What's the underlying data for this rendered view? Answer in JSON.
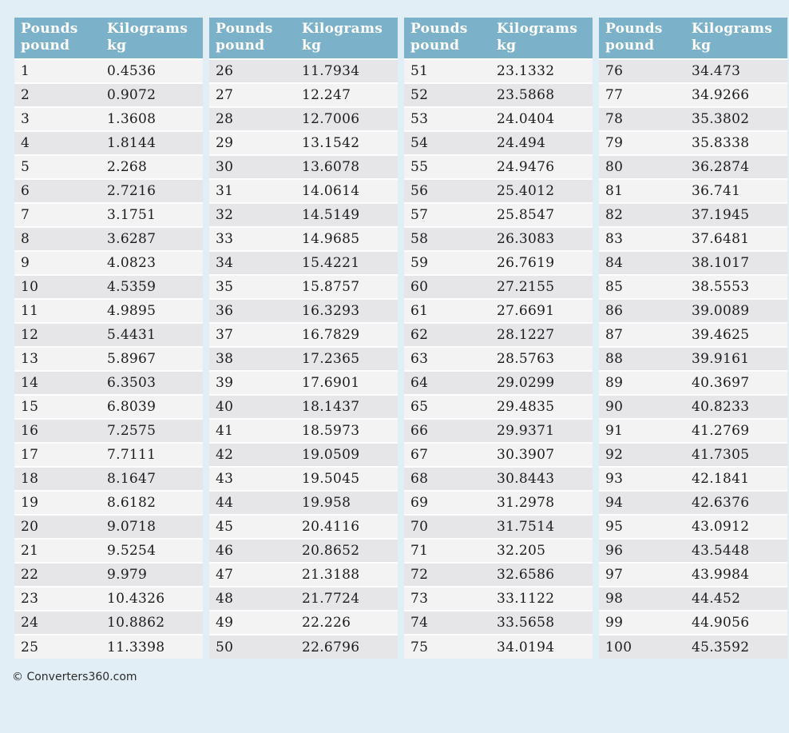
{
  "footer": {
    "text": "© Converters360.com"
  },
  "colors": {
    "page_bg": "#e2eef6",
    "header_bg": "#7cb2c9",
    "header_text": "#ffffff",
    "row_odd": "#f3f3f3",
    "row_even": "#e6e6e9",
    "row_separator": "#fbfdfe",
    "cell_text": "#1c1c1c",
    "footer_text": "#2b2b2b"
  },
  "chart_data": {
    "type": "table",
    "column_headers": {
      "pounds": [
        "Pounds",
        "pound"
      ],
      "kilograms": [
        "Kilograms",
        "kg"
      ]
    },
    "groups": [
      {
        "rows": [
          [
            "1",
            "0.4536"
          ],
          [
            "2",
            "0.9072"
          ],
          [
            "3",
            "1.3608"
          ],
          [
            "4",
            "1.8144"
          ],
          [
            "5",
            "2.268"
          ],
          [
            "6",
            "2.7216"
          ],
          [
            "7",
            "3.1751"
          ],
          [
            "8",
            "3.6287"
          ],
          [
            "9",
            "4.0823"
          ],
          [
            "10",
            "4.5359"
          ],
          [
            "11",
            "4.9895"
          ],
          [
            "12",
            "5.4431"
          ],
          [
            "13",
            "5.8967"
          ],
          [
            "14",
            "6.3503"
          ],
          [
            "15",
            "6.8039"
          ],
          [
            "16",
            "7.2575"
          ],
          [
            "17",
            "7.7111"
          ],
          [
            "18",
            "8.1647"
          ],
          [
            "19",
            "8.6182"
          ],
          [
            "20",
            "9.0718"
          ],
          [
            "21",
            "9.5254"
          ],
          [
            "22",
            "9.979"
          ],
          [
            "23",
            "10.4326"
          ],
          [
            "24",
            "10.8862"
          ],
          [
            "25",
            "11.3398"
          ]
        ]
      },
      {
        "rows": [
          [
            "26",
            "11.7934"
          ],
          [
            "27",
            "12.247"
          ],
          [
            "28",
            "12.7006"
          ],
          [
            "29",
            "13.1542"
          ],
          [
            "30",
            "13.6078"
          ],
          [
            "31",
            "14.0614"
          ],
          [
            "32",
            "14.5149"
          ],
          [
            "33",
            "14.9685"
          ],
          [
            "34",
            "15.4221"
          ],
          [
            "35",
            "15.8757"
          ],
          [
            "36",
            "16.3293"
          ],
          [
            "37",
            "16.7829"
          ],
          [
            "38",
            "17.2365"
          ],
          [
            "39",
            "17.6901"
          ],
          [
            "40",
            "18.1437"
          ],
          [
            "41",
            "18.5973"
          ],
          [
            "42",
            "19.0509"
          ],
          [
            "43",
            "19.5045"
          ],
          [
            "44",
            "19.958"
          ],
          [
            "45",
            "20.4116"
          ],
          [
            "46",
            "20.8652"
          ],
          [
            "47",
            "21.3188"
          ],
          [
            "48",
            "21.7724"
          ],
          [
            "49",
            "22.226"
          ],
          [
            "50",
            "22.6796"
          ]
        ]
      },
      {
        "rows": [
          [
            "51",
            "23.1332"
          ],
          [
            "52",
            "23.5868"
          ],
          [
            "53",
            "24.0404"
          ],
          [
            "54",
            "24.494"
          ],
          [
            "55",
            "24.9476"
          ],
          [
            "56",
            "25.4012"
          ],
          [
            "57",
            "25.8547"
          ],
          [
            "58",
            "26.3083"
          ],
          [
            "59",
            "26.7619"
          ],
          [
            "60",
            "27.2155"
          ],
          [
            "61",
            "27.6691"
          ],
          [
            "62",
            "28.1227"
          ],
          [
            "63",
            "28.5763"
          ],
          [
            "64",
            "29.0299"
          ],
          [
            "65",
            "29.4835"
          ],
          [
            "66",
            "29.9371"
          ],
          [
            "67",
            "30.3907"
          ],
          [
            "68",
            "30.8443"
          ],
          [
            "69",
            "31.2978"
          ],
          [
            "70",
            "31.7514"
          ],
          [
            "71",
            "32.205"
          ],
          [
            "72",
            "32.6586"
          ],
          [
            "73",
            "33.1122"
          ],
          [
            "74",
            "33.5658"
          ],
          [
            "75",
            "34.0194"
          ]
        ]
      },
      {
        "rows": [
          [
            "76",
            "34.473"
          ],
          [
            "77",
            "34.9266"
          ],
          [
            "78",
            "35.3802"
          ],
          [
            "79",
            "35.8338"
          ],
          [
            "80",
            "36.2874"
          ],
          [
            "81",
            "36.741"
          ],
          [
            "82",
            "37.1945"
          ],
          [
            "83",
            "37.6481"
          ],
          [
            "84",
            "38.1017"
          ],
          [
            "85",
            "38.5553"
          ],
          [
            "86",
            "39.0089"
          ],
          [
            "87",
            "39.4625"
          ],
          [
            "88",
            "39.9161"
          ],
          [
            "89",
            "40.3697"
          ],
          [
            "90",
            "40.8233"
          ],
          [
            "91",
            "41.2769"
          ],
          [
            "92",
            "41.7305"
          ],
          [
            "93",
            "42.1841"
          ],
          [
            "94",
            "42.6376"
          ],
          [
            "95",
            "43.0912"
          ],
          [
            "96",
            "43.5448"
          ],
          [
            "97",
            "43.9984"
          ],
          [
            "98",
            "44.452"
          ],
          [
            "99",
            "44.9056"
          ],
          [
            "100",
            "45.3592"
          ]
        ]
      }
    ]
  }
}
